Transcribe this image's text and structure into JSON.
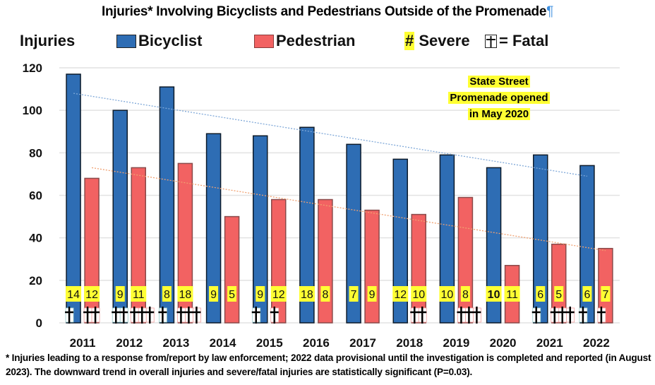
{
  "chart_data": {
    "type": "bar",
    "title": "Injuries* Involving Bicyclists and Pedestrians Outside of the Promenade",
    "ylabel": "Injuries",
    "xlabel": "",
    "ylim": [
      0,
      120
    ],
    "yticks": [
      0,
      20,
      40,
      60,
      80,
      100,
      120
    ],
    "grid": true,
    "legend_position": "top",
    "categories": [
      "2011",
      "2012",
      "2013",
      "2014",
      "2015",
      "2016",
      "2017",
      "2018",
      "2019",
      "2020",
      "2021",
      "2022"
    ],
    "series": [
      {
        "name": "Bicyclist",
        "color": "#2e6db4",
        "values": [
          117,
          100,
          111,
          89,
          88,
          92,
          84,
          77,
          79,
          73,
          79,
          74
        ],
        "severe": [
          14,
          9,
          8,
          9,
          9,
          18,
          7,
          12,
          10,
          10,
          6,
          6
        ],
        "fatal": [
          1,
          2,
          1,
          0,
          1,
          0,
          0,
          0,
          0,
          0,
          1,
          1
        ]
      },
      {
        "name": "Pedestrian",
        "color": "#f26262",
        "values": [
          68,
          73,
          75,
          50,
          58,
          58,
          53,
          51,
          59,
          27,
          37,
          35
        ],
        "severe": [
          12,
          11,
          18,
          5,
          12,
          8,
          9,
          10,
          8,
          11,
          5,
          7
        ],
        "fatal": [
          2,
          3,
          3,
          0,
          1,
          0,
          0,
          2,
          3,
          0,
          3,
          1
        ]
      }
    ],
    "trendlines": [
      {
        "series": "Bicyclist",
        "color": "#7fa8d8",
        "start": 108,
        "end": 69
      },
      {
        "series": "Pedestrian",
        "color": "#f0a070",
        "start": 73,
        "end": 34
      }
    ],
    "legend": {
      "y_title": "Injuries",
      "bicyclist": "Bicyclist",
      "pedestrian": "Pedestrian",
      "severe_symbol": "#",
      "severe_label": "Severe",
      "fatal_label": "= Fatal"
    },
    "annotation": [
      "State Street",
      "Promenade opened",
      "in May 2020"
    ],
    "footnote": "* Injuries leading to a response from/report by law enforcement; 2022 data provisional until the investigation is completed and reported (in August 2023). The downward trend in overall injuries and severe/fatal injuries are statistically significant (P=0.03).",
    "pilcrow": "¶"
  }
}
